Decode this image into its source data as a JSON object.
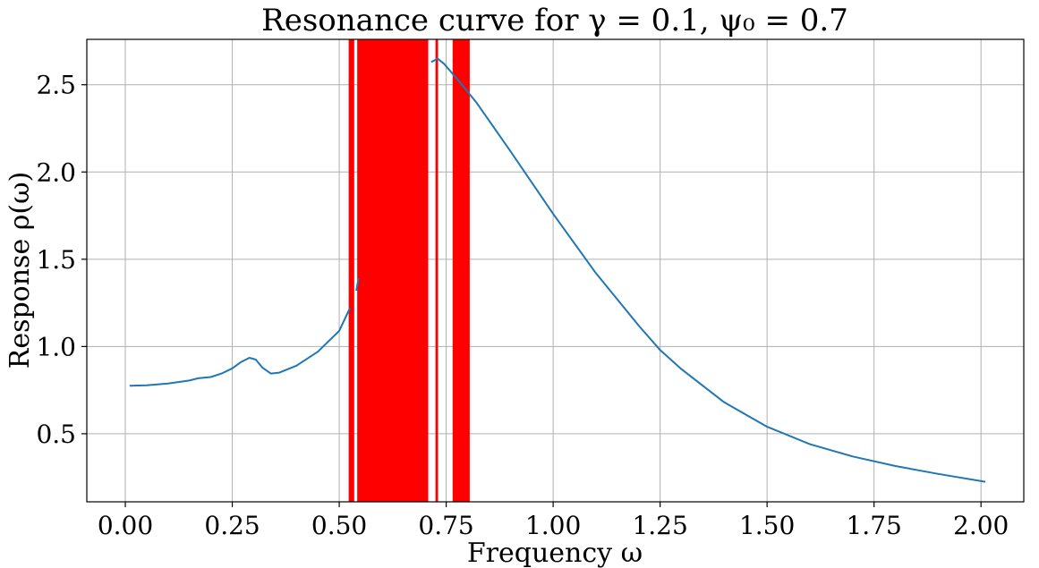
{
  "chart_data": {
    "type": "line",
    "title": "Resonance curve for γ = 0.1, ψ₀ = 0.7",
    "xlabel": "Frequency ω",
    "ylabel": "Response ρ(ω)",
    "xlim": [
      -0.09,
      2.1
    ],
    "ylim": [
      0.11,
      2.76
    ],
    "xticks": [
      "0.00",
      "0.25",
      "0.50",
      "0.75",
      "1.00",
      "1.25",
      "1.50",
      "1.75",
      "2.00"
    ],
    "xtick_values": [
      0.0,
      0.25,
      0.5,
      0.75,
      1.0,
      1.25,
      1.5,
      1.75,
      2.0
    ],
    "yticks": [
      "0.5",
      "1.0",
      "1.5",
      "2.0",
      "2.5"
    ],
    "ytick_values": [
      0.5,
      1.0,
      1.5,
      2.0,
      2.5
    ],
    "grid": true,
    "series": [
      {
        "color": "#1f77b4",
        "segments": [
          [
            [
              0.01,
              0.775
            ],
            [
              0.05,
              0.778
            ],
            [
              0.1,
              0.788
            ],
            [
              0.15,
              0.805
            ],
            [
              0.17,
              0.818
            ],
            [
              0.2,
              0.825
            ],
            [
              0.225,
              0.845
            ],
            [
              0.25,
              0.875
            ],
            [
              0.27,
              0.91
            ],
            [
              0.29,
              0.935
            ],
            [
              0.305,
              0.925
            ],
            [
              0.32,
              0.88
            ],
            [
              0.34,
              0.845
            ],
            [
              0.36,
              0.85
            ],
            [
              0.4,
              0.89
            ],
            [
              0.45,
              0.97
            ],
            [
              0.5,
              1.09
            ],
            [
              0.525,
              1.22
            ]
          ],
          [
            [
              0.54,
              1.32
            ],
            [
              0.545,
              1.39
            ]
          ],
          [
            [
              0.715,
              2.63
            ],
            [
              0.73,
              2.65
            ],
            [
              0.745,
              2.62
            ],
            [
              0.78,
              2.52
            ],
            [
              0.82,
              2.4
            ],
            [
              0.9,
              2.12
            ],
            [
              1.0,
              1.76
            ],
            [
              1.1,
              1.42
            ],
            [
              1.2,
              1.12
            ],
            [
              1.25,
              0.98
            ],
            [
              1.3,
              0.87
            ],
            [
              1.4,
              0.68
            ],
            [
              1.5,
              0.54
            ],
            [
              1.6,
              0.44
            ],
            [
              1.7,
              0.37
            ],
            [
              1.8,
              0.315
            ],
            [
              1.9,
              0.27
            ],
            [
              2.01,
              0.225
            ]
          ]
        ]
      }
    ],
    "red_bands": [
      [
        0.522,
        0.535
      ],
      [
        0.542,
        0.708
      ],
      [
        0.725,
        0.731
      ],
      [
        0.765,
        0.805
      ]
    ],
    "band_color": "#ff0000"
  }
}
